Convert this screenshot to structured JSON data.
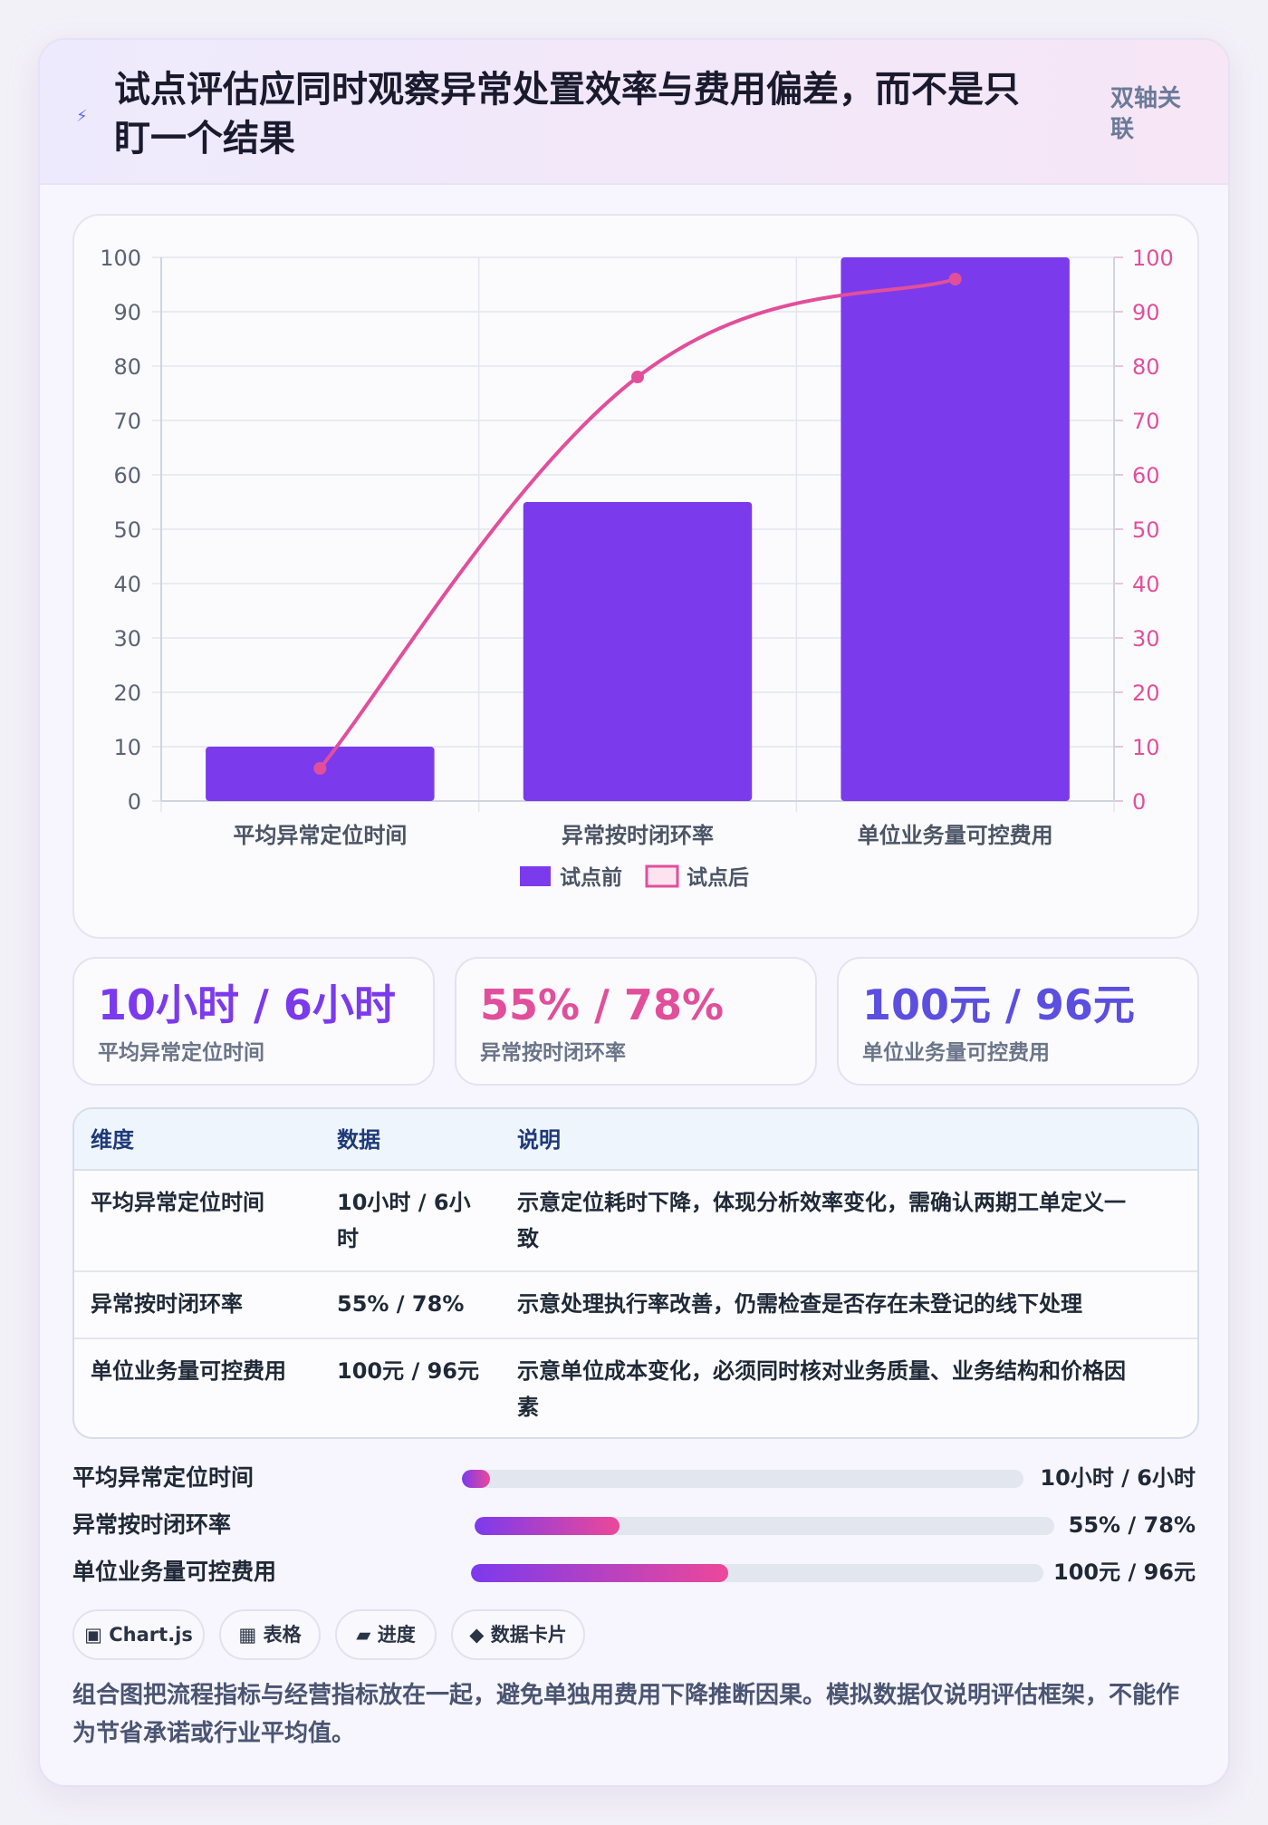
{
  "header": {
    "title": "试点评估应同时观察异常处置效率与费用偏差，而不是只盯一个结果",
    "tag": "双轴关联",
    "icon": "bolt-icon"
  },
  "chart_data": {
    "type": "bar",
    "categories": [
      "平均异常定位时间",
      "异常按时闭环率",
      "单位业务量可控费用"
    ],
    "series": [
      {
        "name": "试点前",
        "type": "bar",
        "axis": "left",
        "values": [
          10,
          55,
          100
        ],
        "color": "#7c3aed"
      },
      {
        "name": "试点后",
        "type": "line",
        "axis": "right",
        "values": [
          6,
          78,
          96
        ],
        "color": "#e14f9b"
      }
    ],
    "y_ticks": [
      "0",
      "10",
      "20",
      "30",
      "40",
      "50",
      "60",
      "70",
      "80",
      "90",
      "100"
    ],
    "y2_ticks": [
      "0",
      "10",
      "20",
      "30",
      "40",
      "50",
      "60",
      "70",
      "80",
      "90",
      "100"
    ],
    "ylim": [
      0,
      100
    ],
    "y2lim": [
      0,
      100
    ],
    "grid": true,
    "legend": "bottom-center",
    "title": "",
    "xlabel": "",
    "ylabel": ""
  },
  "stats": [
    {
      "value": "10小时 / 6小时",
      "label": "平均异常定位时间",
      "color": "#7c3aed"
    },
    {
      "value": "55% / 78%",
      "label": "异常按时闭环率",
      "color": "#e14f9b"
    },
    {
      "value": "100元 / 96元",
      "label": "单位业务量可控费用",
      "color": "#5b4fe0"
    }
  ],
  "table": {
    "headers": [
      "维度",
      "数据",
      "说明"
    ],
    "rows": [
      {
        "dim": "平均异常定位时间",
        "data_line1": "10小时 / 6小",
        "data_line2": "时",
        "desc_line1": "示意定位耗时下降，体现分析效率变化，需确认两期工单定义一",
        "desc_line2": "致"
      },
      {
        "dim": "异常按时闭环率",
        "data_line1": "55% / 78%",
        "data_line2": "",
        "desc_line1": "示意处理执行率改善，仍需检查是否存在未登记的线下处理",
        "desc_line2": ""
      },
      {
        "dim": "单位业务量可控费用",
        "data_line1": "100元 / 96元",
        "data_line2": "",
        "desc_line1": "示意单位成本变化，必须同时核对业务质量、业务结构和价格因",
        "desc_line2": "素"
      }
    ]
  },
  "progress": [
    {
      "label": "平均异常定位时间",
      "value": "10小时 / 6小时",
      "fill": 0.05
    },
    {
      "label": "异常按时闭环率",
      "value": "55% / 78%",
      "fill": 0.25
    },
    {
      "label": "单位业务量可控费用",
      "value": "100元 / 96元",
      "fill": 0.45
    }
  ],
  "chips": [
    {
      "icon": "▣",
      "label": "Chart.js"
    },
    {
      "icon": "▦",
      "label": "表格"
    },
    {
      "icon": "▰",
      "label": "进度"
    },
    {
      "icon": "◆",
      "label": "数据卡片"
    }
  ],
  "note": "组合图把流程指标与经营指标放在一起，避免单独用费用下降推断因果。模拟数据仅说明评估框架，不能作为节省承诺或行业平均值。"
}
